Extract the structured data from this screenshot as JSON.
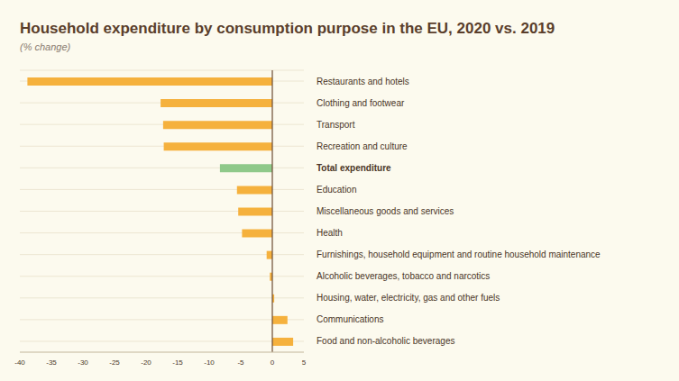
{
  "chart_data": {
    "type": "bar",
    "title": "Household expenditure by consumption purpose in the EU, 2020 vs. 2019",
    "subtitle": "(% change)",
    "orientation": "horizontal",
    "categories": [
      "Restaurants and hotels",
      "Clothing and footwear",
      "Transport",
      "Recreation and culture",
      "Total expenditure",
      "Education",
      "Miscellaneous goods and services",
      "Health",
      "Furnishings, household equipment and routine household maintenance",
      "Alcoholic beverages, tobacco and narcotics",
      "Housing, water, electricity, gas and other fuels",
      "Communications",
      "Food and non-alcoholic beverages"
    ],
    "values": [
      -38.8,
      -17.7,
      -17.3,
      -17.2,
      -8.3,
      -5.6,
      -5.4,
      -4.8,
      -0.9,
      -0.4,
      0.3,
      2.4,
      3.3
    ],
    "colors": [
      "#f5b13d",
      "#f5b13d",
      "#f5b13d",
      "#f5b13d",
      "#8fc98a",
      "#f5b13d",
      "#f5b13d",
      "#f5b13d",
      "#f5b13d",
      "#f5b13d",
      "#f5b13d",
      "#f5b13d",
      "#f5b13d"
    ],
    "xlim": [
      -40,
      5
    ],
    "xticks": [
      -40,
      -35,
      -30,
      -25,
      -20,
      -15,
      -10,
      -5,
      0,
      5
    ],
    "grid": true
  }
}
